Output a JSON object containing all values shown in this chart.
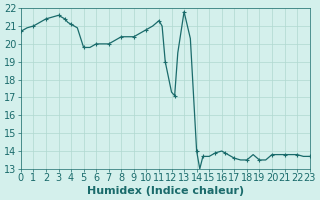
{
  "x": [
    0,
    0.5,
    1,
    1.5,
    2,
    2.5,
    3,
    3.25,
    3.5,
    3.75,
    4,
    4.5,
    5,
    5.5,
    6,
    6.5,
    7,
    7.5,
    8,
    8.5,
    9,
    9.5,
    10,
    10.5,
    11,
    11.25,
    11.5,
    12,
    12.25,
    12.5,
    13,
    13.5,
    14,
    14.25,
    14.5,
    15,
    15.5,
    16,
    16.25,
    16.5,
    17,
    17.5,
    18,
    18.5,
    19,
    19.5,
    20,
    20.5,
    21,
    21.5,
    22,
    22.5,
    23
  ],
  "y": [
    20.7,
    20.9,
    21.0,
    21.2,
    21.4,
    21.5,
    21.6,
    21.5,
    21.4,
    21.2,
    21.1,
    20.9,
    19.8,
    19.8,
    20.0,
    20.0,
    20.0,
    20.2,
    20.4,
    20.4,
    20.4,
    20.6,
    20.8,
    21.0,
    21.3,
    21.0,
    19.0,
    17.3,
    17.1,
    19.5,
    21.8,
    20.3,
    14.0,
    13.0,
    13.7,
    13.7,
    13.9,
    14.0,
    13.9,
    13.8,
    13.6,
    13.5,
    13.5,
    13.8,
    13.5,
    13.5,
    13.8,
    13.8,
    13.8,
    13.8,
    13.8,
    13.7,
    13.7
  ],
  "line_color": "#1a6b6b",
  "marker_color": "#1a6b6b",
  "bg_color": "#d4f0ec",
  "grid_color": "#b0d8d0",
  "axis_color": "#1a6b6b",
  "xlabel": "Humidex (Indice chaleur)",
  "ylabel": "",
  "xlim": [
    0,
    23
  ],
  "ylim": [
    13,
    22
  ],
  "xticks": [
    0,
    1,
    2,
    3,
    4,
    5,
    6,
    7,
    8,
    9,
    10,
    11,
    12,
    13,
    14,
    15,
    16,
    17,
    18,
    19,
    20,
    21,
    22,
    23
  ],
  "yticks": [
    13,
    14,
    15,
    16,
    17,
    18,
    19,
    20,
    21,
    22
  ],
  "tick_fontsize": 7,
  "label_fontsize": 8
}
